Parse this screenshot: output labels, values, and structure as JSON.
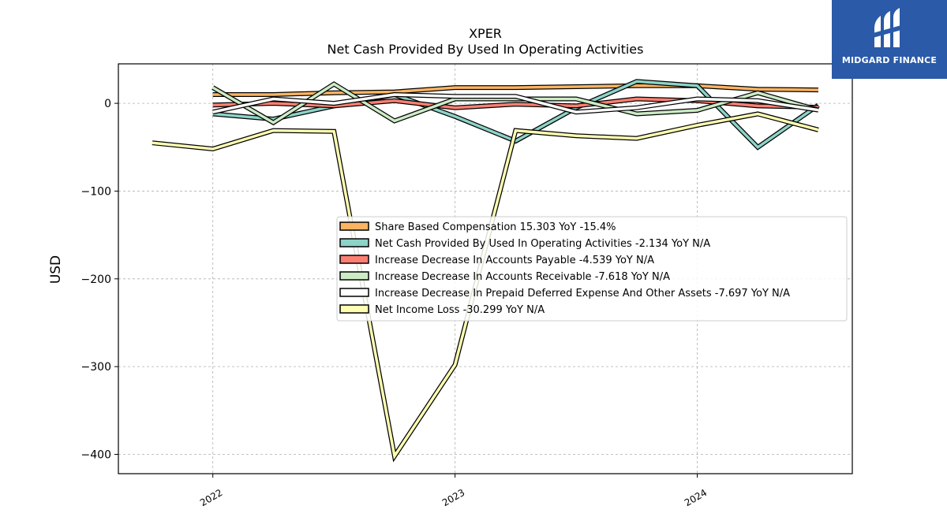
{
  "brand": {
    "name": "MIDGARD FINANCE",
    "icon": "midgard-logo-icon"
  },
  "chart_data": {
    "type": "line",
    "title": "XPER",
    "subtitle": "Net Cash Provided By Used In Operating Activities",
    "xlabel": "",
    "ylabel": "USD",
    "ylim": [
      -422,
      45
    ],
    "yticks": [
      0,
      -100,
      -200,
      -300,
      -400
    ],
    "ytick_labels": [
      "0",
      "−100",
      "−200",
      "−300",
      "−400"
    ],
    "xlim": [
      2021.61,
      2024.64
    ],
    "xticks": [
      2022,
      2023,
      2024
    ],
    "xtick_labels": [
      "2022",
      "2023",
      "2024"
    ],
    "grid": true,
    "legend_position": "center-right",
    "series": [
      {
        "name": "Share Based Compensation",
        "legend": "Share Based Compensation  15.303 YoY -15.4%",
        "color": "#fdb462",
        "x": [
          2022.0,
          2022.25,
          2022.5,
          2022.75,
          2023.0,
          2023.25,
          2023.5,
          2023.75,
          2024.0,
          2024.25,
          2024.5
        ],
        "y": [
          10,
          10,
          12,
          13,
          18,
          18,
          19,
          20,
          20,
          16,
          15.3
        ]
      },
      {
        "name": "Net Cash Provided By Used In Operating Activities",
        "legend": "Net Cash Provided By Used In Operating Activities  -2.134 YoY N/A",
        "color": "#8dd3c7",
        "x": [
          2022.0,
          2022.25,
          2022.5,
          2022.75,
          2023.0,
          2023.25,
          2023.5,
          2023.75,
          2024.0,
          2024.25,
          2024.5
        ],
        "y": [
          -12,
          -18,
          -3,
          10,
          -15,
          -43,
          -5,
          25,
          20,
          -50,
          -2.1
        ]
      },
      {
        "name": "Increase Decrease In Accounts Payable",
        "legend": "Increase Decrease In Accounts Payable  -4.539 YoY N/A",
        "color": "#fb8072",
        "x": [
          2022.0,
          2022.25,
          2022.5,
          2022.75,
          2023.0,
          2023.25,
          2023.5,
          2023.75,
          2024.0,
          2024.25,
          2024.5
        ],
        "y": [
          -2,
          0,
          -3,
          3,
          -5,
          -1,
          -3,
          5,
          3,
          -3,
          -4.5
        ]
      },
      {
        "name": "Increase Decrease In Accounts Receivable",
        "legend": "Increase Decrease In Accounts Receivable  -7.618 YoY N/A",
        "color": "#ccebc5",
        "x": [
          2022.0,
          2022.25,
          2022.5,
          2022.75,
          2023.0,
          2023.25,
          2023.5,
          2023.75,
          2024.0,
          2024.25,
          2024.5
        ],
        "y": [
          18,
          -22,
          22,
          -20,
          5,
          5,
          5,
          -12,
          -8,
          12,
          -7.6
        ]
      },
      {
        "name": "Increase Decrease In Prepaid Deferred Expense And Other Assets",
        "legend": "Increase Decrease In Prepaid Deferred Expense And Other Assets  -7.697 YoY N/A",
        "color": "#ffffff",
        "x": [
          2022.0,
          2022.25,
          2022.5,
          2022.75,
          2023.0,
          2023.25,
          2023.5,
          2023.75,
          2024.0,
          2024.25,
          2024.5
        ],
        "y": [
          -10,
          5,
          0,
          10,
          8,
          8,
          -10,
          -5,
          5,
          3,
          -7.7
        ]
      },
      {
        "name": "Net Income Loss",
        "legend": "Net Income Loss  -30.299 YoY N/A",
        "color": "#ffffb3",
        "x": [
          2021.75,
          2022.0,
          2022.25,
          2022.5,
          2022.75,
          2023.0,
          2023.25,
          2023.5,
          2023.75,
          2024.0,
          2024.25,
          2024.5
        ],
        "y": [
          -45,
          -52,
          -31,
          -32,
          -402,
          -298,
          -31,
          -37,
          -40,
          -25,
          -12,
          -30.3
        ]
      }
    ]
  }
}
